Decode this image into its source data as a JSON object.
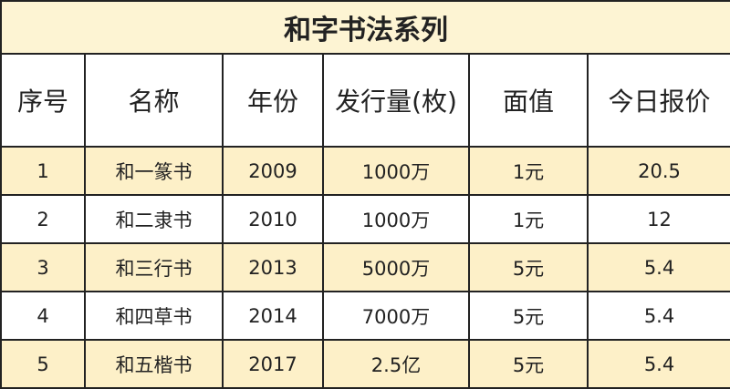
{
  "title": "和字书法系列",
  "table": {
    "header": [
      "序号",
      "名称",
      "年份",
      "发行量(枚)",
      "面值",
      "今日报价"
    ],
    "rows": [
      [
        "1",
        "和一篆书",
        "2009",
        "1000万",
        "1元",
        "20.5"
      ],
      [
        "2",
        "和二隶书",
        "2010",
        "1000万",
        "1元",
        "12"
      ],
      [
        "3",
        "和三行书",
        "2013",
        "5000万",
        "5元",
        "5.4"
      ],
      [
        "4",
        "和四草书",
        "2014",
        "7000万",
        "5元",
        "5.4"
      ],
      [
        "5",
        "和五楷书",
        "2017",
        "2.5亿",
        "5元",
        "5.4"
      ]
    ]
  }
}
